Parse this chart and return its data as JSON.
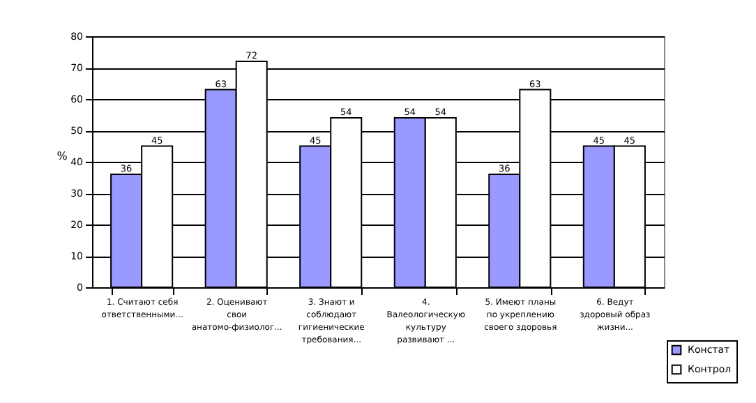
{
  "chart_data": {
    "type": "bar",
    "ylabel": "%",
    "categories": [
      "1. Считают себя ответственными...",
      "2. Оценивают свои анатомо-физиолог...",
      "3. Знают и соблюдают гигиенические требования...",
      "4. Валеологическую культуру развивают ...",
      "5. Имеют планы по укреплению своего здоровья",
      "6. Ведут здоровый образ жизни..."
    ],
    "series": [
      {
        "name": "Констат",
        "color": "#9999ff",
        "values": [
          36,
          63,
          45,
          54,
          36,
          45
        ]
      },
      {
        "name": "Контрол",
        "color": "#ffffff",
        "values": [
          45,
          72,
          54,
          54,
          63,
          45
        ]
      }
    ],
    "ylim": [
      0,
      80
    ],
    "yticks": [
      0,
      10,
      20,
      30,
      40,
      50,
      60,
      70,
      80
    ],
    "grid": "y",
    "data_labels": true,
    "legend": "bottom right"
  }
}
